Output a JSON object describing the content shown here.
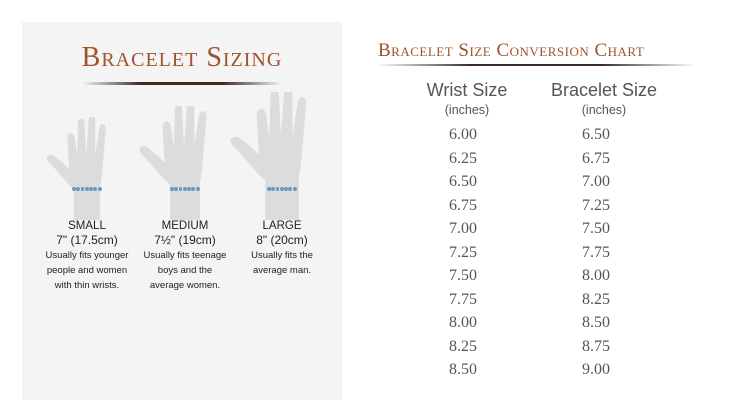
{
  "left_panel": {
    "title": "Bracelet Sizing",
    "sizes": [
      {
        "name": "SMALL",
        "measure": "7\" (17.5cm)",
        "desc": [
          "Usually fits younger",
          "people and women",
          "with thin wrists."
        ]
      },
      {
        "name": "MEDIUM",
        "measure": "7½\" (19cm)",
        "desc": [
          "Usually fits teenage",
          "boys and the",
          "average women."
        ]
      },
      {
        "name": "LARGE",
        "measure": "8\" (20cm)",
        "desc": [
          "Usually fits the",
          "average man."
        ]
      }
    ]
  },
  "right_panel": {
    "title": "Bracelet Size Conversion Chart",
    "columns": [
      {
        "header": "Wrist Size",
        "unit": "(inches)"
      },
      {
        "header": "Bracelet Size",
        "unit": "(inches)"
      }
    ],
    "rows": [
      [
        "6.00",
        "6.50"
      ],
      [
        "6.25",
        "6.75"
      ],
      [
        "6.50",
        "7.00"
      ],
      [
        "6.75",
        "7.25"
      ],
      [
        "7.00",
        "7.50"
      ],
      [
        "7.25",
        "7.75"
      ],
      [
        "7.50",
        "8.00"
      ],
      [
        "7.75",
        "8.25"
      ],
      [
        "8.00",
        "8.50"
      ],
      [
        "8.25",
        "8.75"
      ],
      [
        "8.50",
        "9.00"
      ]
    ]
  },
  "colors": {
    "title": "#a0522d",
    "hand": "#dcdcdc",
    "bracelet": "#7096bf",
    "panel": "#f4f4f4"
  }
}
